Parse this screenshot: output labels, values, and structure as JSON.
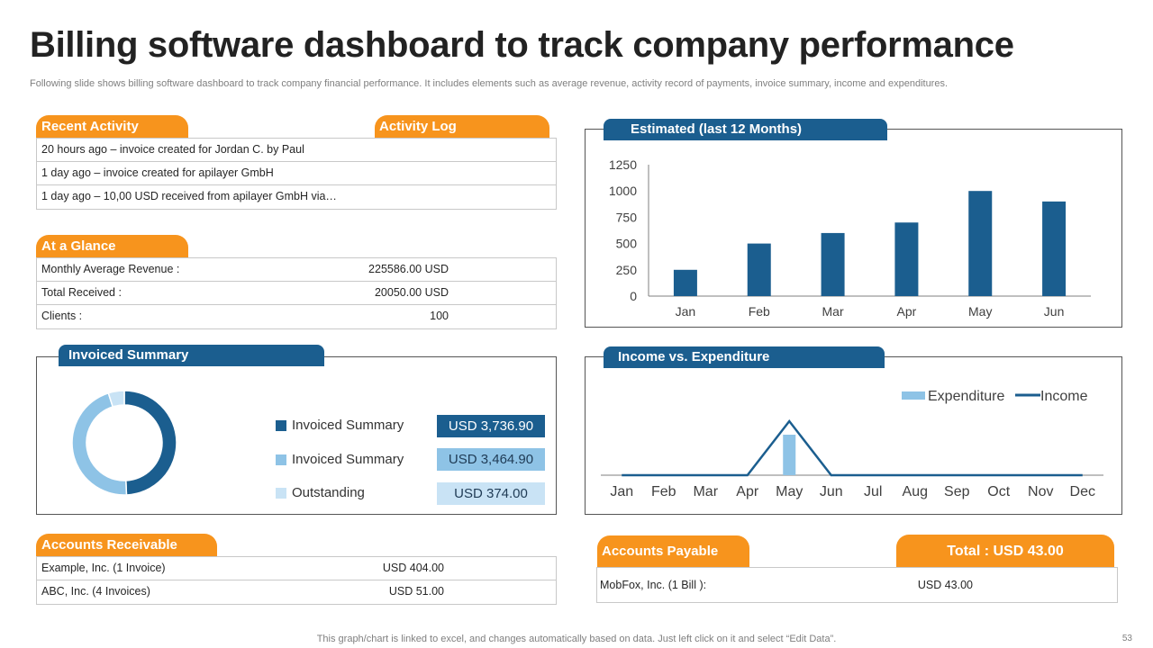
{
  "title": "Billing software dashboard to track company performance",
  "subtitle": "Following slide shows billing software dashboard to track company financial performance. It includes elements such as average revenue, activity record of payments, invoice summary, income and expenditures.",
  "recent_activity": {
    "tab_label": "Recent Activity",
    "log_label": "Activity Log",
    "items": [
      "20 hours ago – invoice created for Jordan C. by Paul",
      "1 day ago – invoice created for apilayer GmbH",
      "1 day ago – 10,00 USD received from apilayer GmbH via…"
    ]
  },
  "at_a_glance": {
    "tab_label": "At a Glance",
    "rows": [
      {
        "label": "Monthly Average Revenue :",
        "value": "225586.00 USD"
      },
      {
        "label": "Total Received :",
        "value": "20050.00 USD"
      },
      {
        "label": "Clients :",
        "value": "100"
      }
    ]
  },
  "invoiced_summary": {
    "tab_label": "Invoiced Summary",
    "legend": [
      {
        "label": "Invoiced Summary",
        "value": "USD 3,736.90",
        "color": "#1b5e8f",
        "box_color": "#1b5e8f",
        "text_color": "#ffffff"
      },
      {
        "label": "Invoiced Summary",
        "value": "USD 3,464.90",
        "color": "#8ec3e6",
        "box_color": "#8ec3e6",
        "text_color": "#1f3b55"
      },
      {
        "label": "Outstanding",
        "value": "USD 374.00",
        "color": "#c9e3f5",
        "box_color": "#c9e3f5",
        "text_color": "#1f3b55"
      }
    ],
    "donut_values": [
      3736.9,
      3464.9,
      374.0
    ]
  },
  "accounts_receivable": {
    "tab_label": "Accounts Receivable",
    "rows": [
      {
        "label": "Example, Inc. (1 Invoice)",
        "value": "USD 404.00"
      },
      {
        "label": "ABC, Inc. (4 Invoices)",
        "value": "USD 51.00"
      }
    ]
  },
  "accounts_payable": {
    "tab_label": "Accounts Payable",
    "total_label": "Total : USD 43.00",
    "rows": [
      {
        "label": "MobFox, Inc. (1 Bill ):",
        "value": "USD 43.00"
      }
    ]
  },
  "estimated_chart": {
    "tab_label": "Estimated (last 12 Months)"
  },
  "income_chart": {
    "tab_label": "Income vs. Expenditure"
  },
  "chart_data": [
    {
      "type": "bar",
      "title": "Estimated (last 12 Months)",
      "categories": [
        "Jan",
        "Feb",
        "Mar",
        "Apr",
        "May",
        "Jun"
      ],
      "values": [
        250,
        500,
        600,
        700,
        1000,
        900
      ],
      "yticks": [
        "0",
        "250",
        "500",
        "750",
        "1000",
        "1250"
      ],
      "ylim": [
        0,
        1250
      ],
      "xlabel": "",
      "ylabel": "",
      "color": "#1b5e8f"
    },
    {
      "type": "line",
      "title": "Income vs. Expenditure",
      "categories": [
        "Jan",
        "Feb",
        "Mar",
        "Apr",
        "May",
        "Jun",
        "Jul",
        "Aug",
        "Sep",
        "Oct",
        "Nov",
        "Dec"
      ],
      "series": [
        {
          "name": "Expenditure",
          "kind": "bar",
          "color": "#8ec3e6",
          "values": [
            0,
            0,
            0,
            0,
            45,
            0,
            0,
            0,
            0,
            0,
            0,
            0
          ]
        },
        {
          "name": "Income",
          "kind": "line",
          "color": "#1b5e8f",
          "values": [
            0,
            0,
            0,
            0,
            60,
            0,
            0,
            0,
            0,
            0,
            0,
            0
          ]
        }
      ],
      "ylim": [
        0,
        70
      ],
      "legend_position": "top-right"
    }
  ],
  "footer": "This graph/chart is linked to excel, and changes automatically based on data. Just left click on it and select “Edit Data”.",
  "page_number": "53"
}
